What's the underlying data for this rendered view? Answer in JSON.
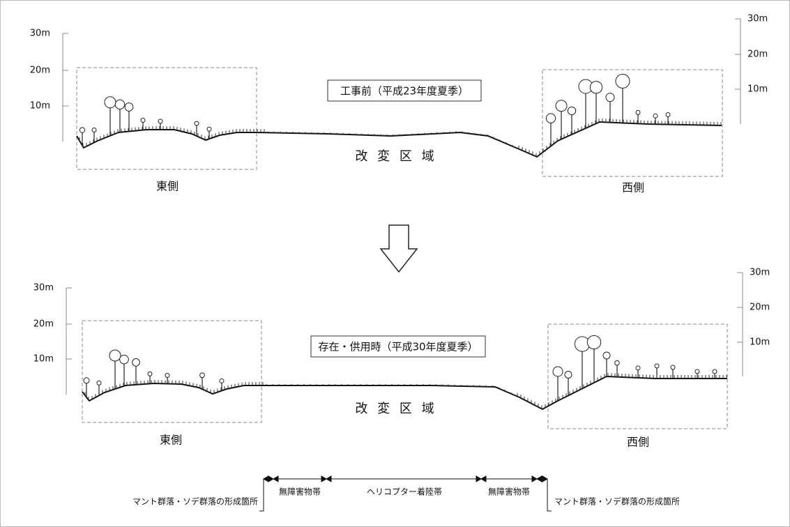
{
  "panels": [
    {
      "title": "工事前（平成23年度夏季）",
      "area": "改 変 区 域",
      "east": "東側",
      "west": "西側",
      "left_scale": [
        "30m",
        "20m",
        "10m"
      ],
      "right_scale": [
        "30m",
        "20m",
        "10m"
      ]
    },
    {
      "title": "存在・供用時（平成30年度夏季）",
      "area": "改 変 区 域",
      "east": "東側",
      "west": "西側",
      "left_scale": [
        "30m",
        "20m",
        "10m"
      ],
      "right_scale": [
        "30m",
        "20m",
        "10m"
      ]
    }
  ],
  "legend": {
    "edges": [
      "マント群落・ソデ群落の形成箇所",
      "マント群落・ソデ群落の形成箇所"
    ],
    "zones": [
      "無障害物帯",
      "ヘリコプター着陸帯",
      "無障害物帯"
    ]
  }
}
